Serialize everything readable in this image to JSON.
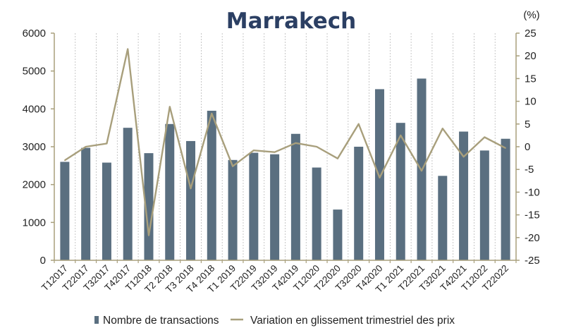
{
  "chart_data": {
    "type": "bar+line",
    "title": "Marrakech",
    "y2_unit_label": "(%)",
    "categories": [
      "T12017",
      "T22017",
      "T32017",
      "T42017",
      "T12018",
      "T2 2018",
      "T3 2018",
      "T4 2018",
      "T1 2019",
      "T22019",
      "T32019",
      "T42019",
      "T12020",
      "T22020",
      "T32020",
      "T42020",
      "T1 2021",
      "T22021",
      "T32021",
      "T42021",
      "T12022",
      "T22022"
    ],
    "series": [
      {
        "name": "Nombre de transactions",
        "type": "bar",
        "axis": "left",
        "color": "#5a6f80",
        "values": [
          2600,
          2970,
          2580,
          3500,
          2830,
          3600,
          3150,
          3950,
          2650,
          2840,
          2800,
          3340,
          2450,
          1340,
          3000,
          4520,
          3630,
          4800,
          2230,
          3400,
          2900,
          3210
        ]
      },
      {
        "name": "Variation en glissement trimestriel des prix",
        "type": "line",
        "axis": "right",
        "color": "#a89f7c",
        "values": [
          -3,
          0,
          0.7,
          21.5,
          -19.5,
          8.8,
          -9.2,
          7.3,
          -4.3,
          -0.8,
          -1.2,
          0.8,
          0,
          -2.6,
          5,
          -6.8,
          2.5,
          -5.3,
          4,
          -2.2,
          2.1,
          -0.3
        ]
      }
    ],
    "y_left": {
      "min": 0,
      "max": 6000,
      "ticks": [
        0,
        1000,
        2000,
        3000,
        4000,
        5000,
        6000
      ]
    },
    "y_right": {
      "min": -25,
      "max": 25,
      "ticks": [
        -25,
        -20,
        -15,
        -10,
        -5,
        0,
        5,
        10,
        15,
        20,
        25
      ]
    },
    "grid": "vertical dashed",
    "legend_placement": "bottom"
  }
}
